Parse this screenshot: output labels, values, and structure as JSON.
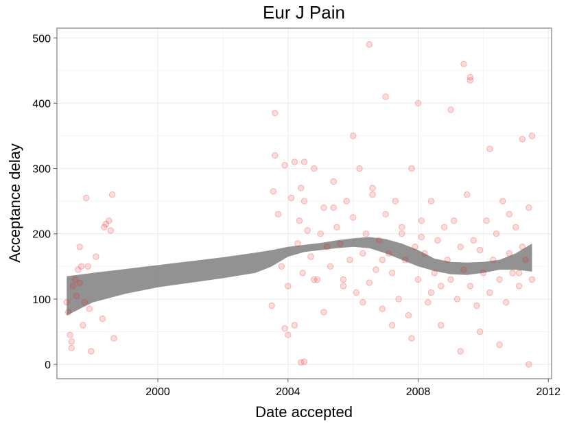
{
  "chart_data": {
    "type": "scatter",
    "title": "Eur J Pain",
    "xlabel": "Date accepted",
    "ylabel": "Acceptance delay",
    "xlim": [
      1996.9,
      2012.1
    ],
    "ylim": [
      -22,
      515
    ],
    "xticks": [
      2000,
      2004,
      2008,
      2012
    ],
    "xtick_labels": [
      "2000",
      "2004",
      "2008",
      "2012"
    ],
    "yticks": [
      0,
      100,
      200,
      300,
      400,
      500
    ],
    "ytick_labels": [
      "0",
      "100",
      "200",
      "300",
      "400",
      "500"
    ],
    "grid": true,
    "legend": "none",
    "colors": {
      "points": "#ee2222",
      "smooth_band": "#7f7f7f",
      "panel_border": "#7f7f7f",
      "grid": "#ebebeb"
    },
    "x": [
      1997.2,
      1997.25,
      1997.3,
      1997.35,
      1997.4,
      1997.45,
      1997.5,
      1997.55,
      1997.6,
      1997.65,
      1997.7,
      1997.8,
      1997.85,
      1997.9,
      1997.95,
      1998.3,
      1998.35,
      1998.5,
      1998.55,
      1998.6,
      1998.65,
      1997.35,
      1997.6,
      1997.75,
      1998.1,
      1998.4,
      2003.5,
      2003.55,
      2003.6,
      2003.7,
      2003.8,
      2003.9,
      2004.0,
      2004.1,
      2004.2,
      2004.3,
      2004.35,
      2004.4,
      2004.45,
      2004.5,
      2004.6,
      2004.7,
      2004.8,
      2004.9,
      2005.0,
      2005.1,
      2005.2,
      2005.3,
      2005.4,
      2005.5,
      2005.6,
      2005.7,
      2005.8,
      2005.9,
      2006.0,
      2006.1,
      2006.2,
      2006.3,
      2006.4,
      2006.5,
      2006.6,
      2006.7,
      2006.8,
      2006.9,
      2007.0,
      2007.1,
      2007.2,
      2007.3,
      2007.4,
      2007.5,
      2007.6,
      2007.7,
      2007.8,
      2007.9,
      2008.0,
      2008.1,
      2008.2,
      2008.3,
      2008.4,
      2008.5,
      2008.6,
      2008.7,
      2008.8,
      2008.9,
      2009.0,
      2009.1,
      2009.2,
      2009.3,
      2009.4,
      2009.5,
      2009.6,
      2009.7,
      2009.8,
      2009.9,
      2010.0,
      2010.1,
      2010.2,
      2010.3,
      2010.4,
      2010.5,
      2010.6,
      2010.7,
      2010.8,
      2010.9,
      2011.0,
      2011.1,
      2011.2,
      2011.3,
      2011.4,
      2011.5,
      2003.6,
      2003.9,
      2004.2,
      2004.5,
      2004.8,
      2005.1,
      2005.4,
      2005.7,
      2006.0,
      2006.3,
      2006.6,
      2006.9,
      2007.2,
      2007.5,
      2007.8,
      2008.1,
      2008.4,
      2008.7,
      2009.0,
      2009.3,
      2009.6,
      2009.9,
      2010.2,
      2010.5,
      2010.8,
      2011.1,
      2011.4,
      2004.0,
      2004.4,
      2004.5,
      2006.5,
      2008.0,
      2009.4,
      2009.6,
      2007.0,
      2011.2,
      2011.5
    ],
    "y": [
      95,
      80,
      45,
      35,
      120,
      130,
      105,
      145,
      180,
      150,
      60,
      255,
      150,
      85,
      20,
      70,
      210,
      220,
      205,
      260,
      40,
      25,
      125,
      95,
      165,
      215,
      90,
      265,
      320,
      230,
      150,
      305,
      120,
      255,
      310,
      185,
      220,
      270,
      140,
      250,
      205,
      165,
      300,
      130,
      200,
      240,
      180,
      150,
      280,
      210,
      185,
      130,
      250,
      160,
      225,
      110,
      300,
      170,
      200,
      125,
      260,
      145,
      190,
      85,
      230,
      170,
      140,
      250,
      100,
      200,
      160,
      75,
      300,
      180,
      130,
      220,
      170,
      95,
      250,
      140,
      190,
      120,
      210,
      160,
      130,
      220,
      100,
      180,
      145,
      260,
      120,
      190,
      90,
      175,
      140,
      220,
      110,
      160,
      200,
      130,
      250,
      95,
      170,
      140,
      210,
      120,
      180,
      160,
      240,
      130,
      385,
      55,
      60,
      310,
      130,
      80,
      240,
      120,
      350,
      95,
      270,
      160,
      60,
      210,
      40,
      195,
      110,
      60,
      390,
      20,
      440,
      50,
      330,
      30,
      230,
      140,
      0,
      45,
      3,
      4,
      490,
      400,
      460,
      435,
      410,
      345,
      350
    ],
    "smooth": {
      "x": [
        1997.2,
        1998.0,
        1999.0,
        2000.0,
        2001.0,
        2002.0,
        2003.0,
        2003.5,
        2004.0,
        2004.5,
        2005.0,
        2005.5,
        2006.0,
        2006.5,
        2007.0,
        2007.5,
        2008.0,
        2008.5,
        2009.0,
        2009.5,
        2010.0,
        2010.5,
        2011.0,
        2011.5
      ],
      "lower": [
        75,
        95,
        108,
        118,
        125,
        132,
        140,
        150,
        165,
        172,
        175,
        178,
        180,
        178,
        170,
        160,
        150,
        143,
        138,
        137,
        140,
        145,
        145,
        142
      ],
      "upper": [
        135,
        140,
        146,
        152,
        158,
        164,
        171,
        175,
        180,
        183,
        186,
        190,
        193,
        195,
        192,
        185,
        175,
        162,
        157,
        156,
        157,
        160,
        170,
        185
      ]
    }
  }
}
